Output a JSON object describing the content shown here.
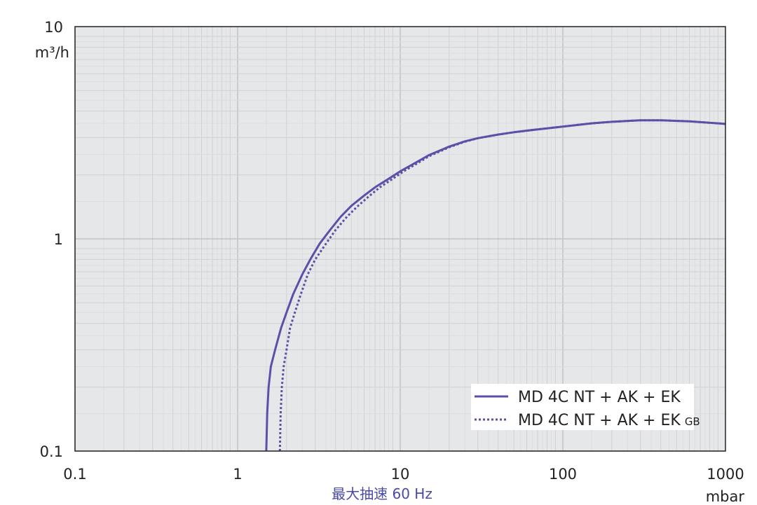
{
  "chart_data": {
    "type": "line",
    "x_scale": "log",
    "y_scale": "log",
    "xlim": [
      0.1,
      1000
    ],
    "ylim": [
      0.1,
      10
    ],
    "x_ticks": [
      "0.1",
      "1",
      "10",
      "100",
      "1000"
    ],
    "y_ticks": [
      "0.1",
      "1",
      "10"
    ],
    "xlabel": "mbar",
    "ylabel": "m³/h",
    "caption": "最大抽速 60 Hz",
    "grid": true,
    "legend_position": "bottom-right",
    "series": [
      {
        "name": "MD 4C NT + AK + EK",
        "suffix": "",
        "style": "solid",
        "color": "#5a50a8",
        "x": [
          1.5,
          1.52,
          1.55,
          1.6,
          1.7,
          1.85,
          2.0,
          2.2,
          2.5,
          2.8,
          3.2,
          3.7,
          4.3,
          5.0,
          6.0,
          7.0,
          8.5,
          10,
          12,
          15,
          20,
          25,
          30,
          40,
          50,
          70,
          100,
          150,
          200,
          300,
          400,
          600,
          1000
        ],
        "y": [
          0.1,
          0.15,
          0.2,
          0.25,
          0.3,
          0.38,
          0.45,
          0.55,
          0.68,
          0.8,
          0.95,
          1.1,
          1.27,
          1.43,
          1.6,
          1.75,
          1.92,
          2.08,
          2.25,
          2.48,
          2.72,
          2.88,
          2.98,
          3.1,
          3.18,
          3.28,
          3.38,
          3.5,
          3.56,
          3.62,
          3.62,
          3.58,
          3.48
        ]
      },
      {
        "name": "MD 4C NT + AK + EK",
        "suffix": "GB",
        "style": "dotted",
        "color": "#5a50a8",
        "x": [
          1.82,
          1.84,
          1.87,
          1.92,
          2.0,
          2.1,
          2.25,
          2.45,
          2.7,
          3.0,
          3.5,
          4.0,
          4.7,
          5.5,
          6.5,
          7.5,
          9.0,
          10.5,
          12.5,
          15,
          20,
          25,
          30,
          40,
          50,
          70,
          100,
          150,
          200,
          300,
          400,
          600,
          1000
        ],
        "y": [
          0.1,
          0.15,
          0.2,
          0.25,
          0.3,
          0.38,
          0.45,
          0.55,
          0.68,
          0.8,
          0.95,
          1.1,
          1.27,
          1.43,
          1.6,
          1.75,
          1.92,
          2.08,
          2.25,
          2.45,
          2.7,
          2.87,
          2.98,
          3.1,
          3.18,
          3.28,
          3.38,
          3.5,
          3.56,
          3.62,
          3.62,
          3.58,
          3.48
        ]
      }
    ]
  }
}
